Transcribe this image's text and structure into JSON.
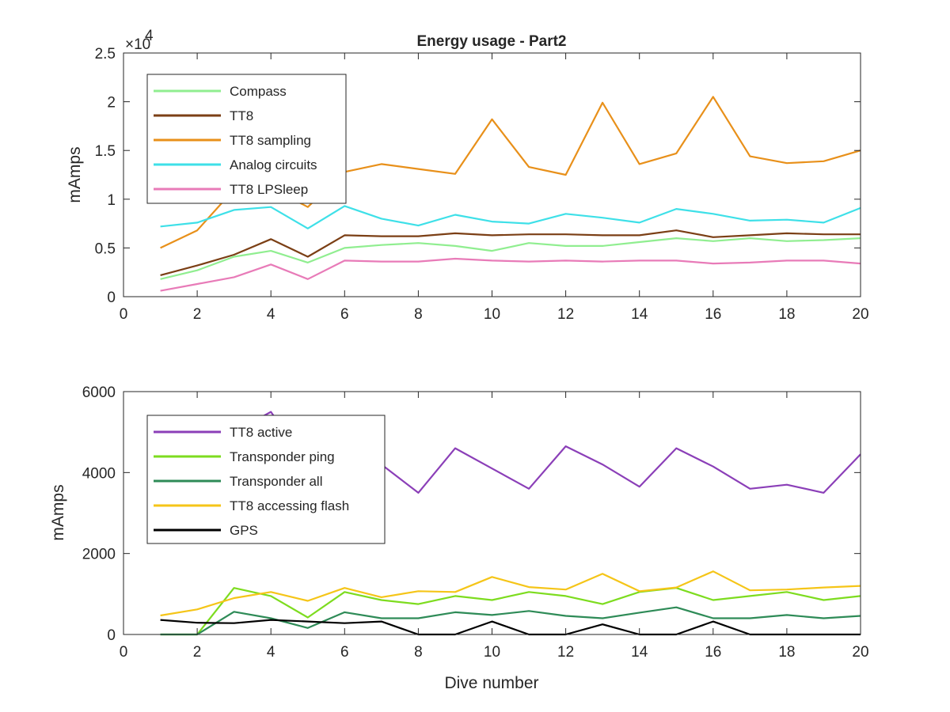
{
  "chart_data": [
    {
      "type": "line",
      "title": "Energy usage - Part2",
      "xlabel": "",
      "ylabel": "mAmps",
      "xlim": [
        0,
        20
      ],
      "ylim": [
        0,
        25000
      ],
      "x_ticks": [
        0,
        2,
        4,
        6,
        8,
        10,
        12,
        14,
        16,
        18,
        20
      ],
      "y_ticks": [
        0,
        5000,
        10000,
        15000,
        20000,
        25000
      ],
      "y_tick_labels": [
        "0",
        "0.5",
        "1",
        "1.5",
        "2",
        "2.5"
      ],
      "y_multiplier": "×10",
      "y_multiplier_exp": "4",
      "grid": false,
      "legend_position": "top-left",
      "x": [
        1,
        2,
        3,
        4,
        5,
        6,
        7,
        8,
        9,
        10,
        11,
        12,
        13,
        14,
        15,
        16,
        17,
        18,
        19,
        20
      ],
      "series": [
        {
          "name": "Compass",
          "color": "#90ee90",
          "values": [
            1800,
            2700,
            4100,
            4700,
            3500,
            5000,
            5300,
            5500,
            5200,
            4700,
            5500,
            5200,
            5200,
            5600,
            6000,
            5700,
            6000,
            5700,
            5800,
            6000
          ]
        },
        {
          "name": "TT8",
          "color": "#7b3f15",
          "values": [
            2200,
            3200,
            4300,
            5900,
            4100,
            6300,
            6200,
            6200,
            6500,
            6300,
            6400,
            6400,
            6300,
            6300,
            6800,
            6100,
            6300,
            6500,
            6400,
            6400
          ]
        },
        {
          "name": "TT8 sampling",
          "color": "#e8901a",
          "values": [
            5000,
            6800,
            11000,
            11200,
            9200,
            12800,
            13600,
            13100,
            12600,
            18200,
            13300,
            12500,
            19900,
            13600,
            14700,
            20500,
            14400,
            13700,
            13900,
            15000
          ]
        },
        {
          "name": "Analog circuits",
          "color": "#3ee0e8",
          "values": [
            7200,
            7600,
            8900,
            9200,
            7000,
            9300,
            8000,
            7300,
            8400,
            7700,
            7500,
            8500,
            8100,
            7600,
            9000,
            8500,
            7800,
            7900,
            7600,
            9100
          ]
        },
        {
          "name": "TT8 LPSleep",
          "color": "#e87bb8",
          "values": [
            600,
            1300,
            2000,
            3300,
            1800,
            3700,
            3600,
            3600,
            3900,
            3700,
            3600,
            3700,
            3600,
            3700,
            3700,
            3400,
            3500,
            3700,
            3700,
            3400
          ]
        }
      ]
    },
    {
      "type": "line",
      "title": "",
      "xlabel": "Dive number",
      "ylabel": "mAmps",
      "xlim": [
        0,
        20
      ],
      "ylim": [
        0,
        6000
      ],
      "x_ticks": [
        0,
        2,
        4,
        6,
        8,
        10,
        12,
        14,
        16,
        18,
        20
      ],
      "y_ticks": [
        0,
        2000,
        4000,
        6000
      ],
      "y_tick_labels": [
        "0",
        "2000",
        "4000",
        "6000"
      ],
      "grid": false,
      "legend_position": "top-left",
      "x": [
        1,
        2,
        3,
        4,
        5,
        6,
        7,
        8,
        9,
        10,
        11,
        12,
        13,
        14,
        15,
        16,
        17,
        18,
        19,
        20
      ],
      "series": [
        {
          "name": "TT8 active",
          "color": "#8b3fb8",
          "values": [
            3600,
            4100,
            5000,
            5500,
            4200,
            5000,
            4200,
            3500,
            4600,
            4100,
            3600,
            4650,
            4200,
            3650,
            4600,
            4150,
            3600,
            3700,
            3500,
            4450
          ]
        },
        {
          "name": "Transponder ping",
          "color": "#7ddc1f",
          "values": [
            0,
            0,
            1150,
            950,
            420,
            1050,
            850,
            750,
            950,
            850,
            1050,
            950,
            750,
            1050,
            1150,
            850,
            950,
            1050,
            850,
            950
          ]
        },
        {
          "name": "Transponder all",
          "color": "#2e8b57",
          "values": [
            0,
            0,
            560,
            400,
            160,
            550,
            400,
            400,
            550,
            480,
            580,
            460,
            400,
            540,
            670,
            400,
            400,
            480,
            400,
            460
          ]
        },
        {
          "name": "TT8 accessing flash",
          "color": "#f5c518",
          "values": [
            470,
            620,
            900,
            1050,
            830,
            1150,
            920,
            1070,
            1050,
            1420,
            1170,
            1110,
            1500,
            1070,
            1160,
            1560,
            1090,
            1110,
            1160,
            1200
          ]
        },
        {
          "name": "GPS",
          "color": "#000000",
          "values": [
            360,
            290,
            280,
            360,
            320,
            280,
            320,
            0,
            0,
            320,
            0,
            0,
            250,
            0,
            0,
            320,
            0,
            0,
            0,
            0
          ]
        }
      ]
    }
  ]
}
